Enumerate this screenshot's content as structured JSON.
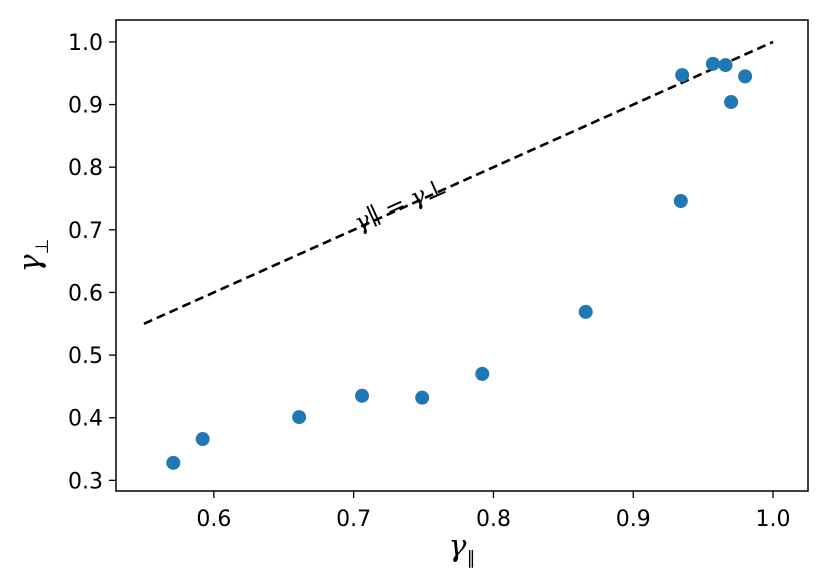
{
  "chart_data": {
    "type": "scatter",
    "title": "",
    "xlabel": "γ",
    "xlabel_sub": "∥",
    "ylabel": "γ",
    "ylabel_sub": "⊥",
    "xlim": [
      0.53,
      1.025
    ],
    "ylim": [
      0.283,
      1.035
    ],
    "x_ticks": [
      0.6,
      0.7,
      0.8,
      0.9,
      1.0
    ],
    "x_tick_labels": [
      "0.6",
      "0.7",
      "0.8",
      "0.9",
      "1.0"
    ],
    "y_ticks": [
      0.3,
      0.4,
      0.5,
      0.6,
      0.7,
      0.8,
      0.9,
      1.0
    ],
    "y_tick_labels": [
      "0.3",
      "0.4",
      "0.5",
      "0.6",
      "0.7",
      "0.8",
      "0.9",
      "1.0"
    ],
    "grid": false,
    "marker_color": "#1f77b4",
    "series": [
      {
        "x": [
          0.571,
          0.592,
          0.661,
          0.706,
          0.749,
          0.792,
          0.866,
          0.934,
          0.935,
          0.957,
          0.966,
          0.97,
          0.98
        ],
        "y": [
          0.328,
          0.366,
          0.401,
          0.435,
          0.432,
          0.47,
          0.569,
          0.746,
          0.947,
          0.965,
          0.963,
          0.904,
          0.945
        ]
      }
    ],
    "reference_line": {
      "x": [
        0.55,
        1.0
      ],
      "y": [
        0.55,
        1.0
      ],
      "style": "dashed",
      "color": "#000000",
      "label": "γ∥ = γ⊥"
    }
  }
}
